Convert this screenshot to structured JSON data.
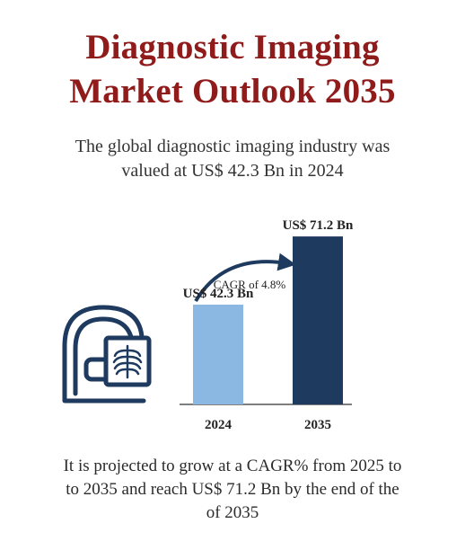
{
  "title": {
    "line1": "Diagnostic Imaging",
    "line2": "Market Outlook 2035"
  },
  "intro": {
    "line1": "The global diagnostic imaging industry was",
    "line2": "valued at US$ 42.3 Bn in 2024"
  },
  "icon": "ct-scanner-xray-icon",
  "colors": {
    "title": "#8f1b1b",
    "bar_2024": "#8ab8e2",
    "bar_2035": "#1f3a5f",
    "axis": "#444444",
    "arrow": "#1f3a5f",
    "icon": "#1f3a5f"
  },
  "chart_data": {
    "type": "bar",
    "categories": [
      "2024",
      "2035"
    ],
    "values": [
      42.3,
      71.2
    ],
    "value_labels": [
      "US$ 42.3 Bn",
      "US$ 71.2 Bn"
    ],
    "annotation": "CAGR of 4.8%",
    "ylim": [
      0,
      80
    ],
    "grid": false
  },
  "outro": {
    "line1": "It is projected to grow at a CAGR% from 2025 to",
    "line2": "to 2035 and reach US$ 71.2 Bn by the end of the",
    "line3": "of 2035"
  }
}
